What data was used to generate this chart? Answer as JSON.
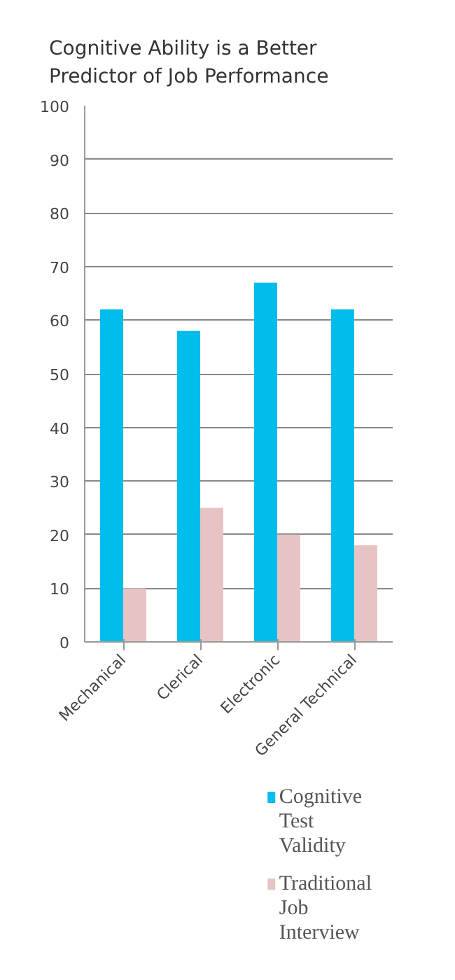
{
  "chart_data": {
    "type": "bar",
    "title": "Cognitive Ability is a Better Predictor of Job Performance",
    "categories": [
      "Mechanical",
      "Clerical",
      "Electronic",
      "General Technical"
    ],
    "series": [
      {
        "name": "Cognitive Test Validity",
        "color": "#00bdec",
        "values": [
          62,
          58,
          67,
          62
        ]
      },
      {
        "name": "Traditional Job Interview",
        "color": "#e8c3c3",
        "values": [
          10,
          25,
          20,
          18
        ]
      }
    ],
    "ylim": [
      0,
      100
    ],
    "yticks": [
      0,
      10,
      20,
      30,
      40,
      50,
      60,
      70,
      80,
      90,
      100
    ],
    "grid": "y",
    "legend": "bottom right"
  }
}
